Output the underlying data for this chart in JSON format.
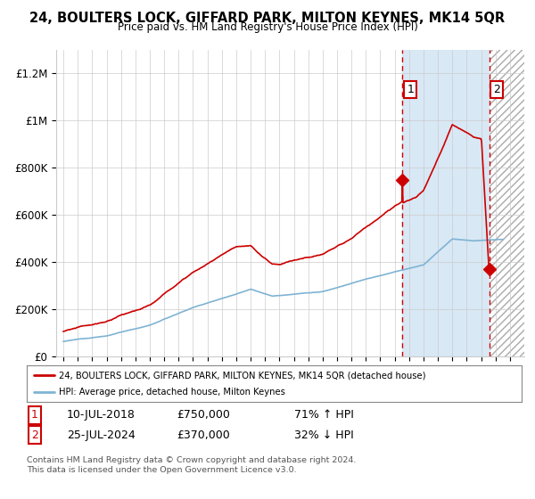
{
  "title": "24, BOULTERS LOCK, GIFFARD PARK, MILTON KEYNES, MK14 5QR",
  "subtitle": "Price paid vs. HM Land Registry's House Price Index (HPI)",
  "ylabel_ticks": [
    "£0",
    "£200K",
    "£400K",
    "£600K",
    "£800K",
    "£1M",
    "£1.2M"
  ],
  "ytick_vals": [
    0,
    200000,
    400000,
    600000,
    800000,
    1000000,
    1200000
  ],
  "ylim": [
    0,
    1300000
  ],
  "xlim_start": 1994.5,
  "xlim_end": 2027.0,
  "red_color": "#cc0000",
  "blue_color": "#7fb3d3",
  "shade1_color": "#d8e8f5",
  "marker1_date": 2018.54,
  "marker1_price": 750000,
  "marker2_date": 2024.56,
  "marker2_price": 370000,
  "legend_line1": "24, BOULTERS LOCK, GIFFARD PARK, MILTON KEYNES, MK14 5QR (detached house)",
  "legend_line2": "HPI: Average price, detached house, Milton Keynes",
  "table_row1": [
    "1",
    "10-JUL-2018",
    "£750,000",
    "71% ↑ HPI"
  ],
  "table_row2": [
    "2",
    "25-JUL-2024",
    "£370,000",
    "32% ↓ HPI"
  ],
  "footnote": "Contains HM Land Registry data © Crown copyright and database right 2024.\nThis data is licensed under the Open Government Licence v3.0.",
  "background_color": "#ffffff",
  "grid_color": "#cccccc"
}
